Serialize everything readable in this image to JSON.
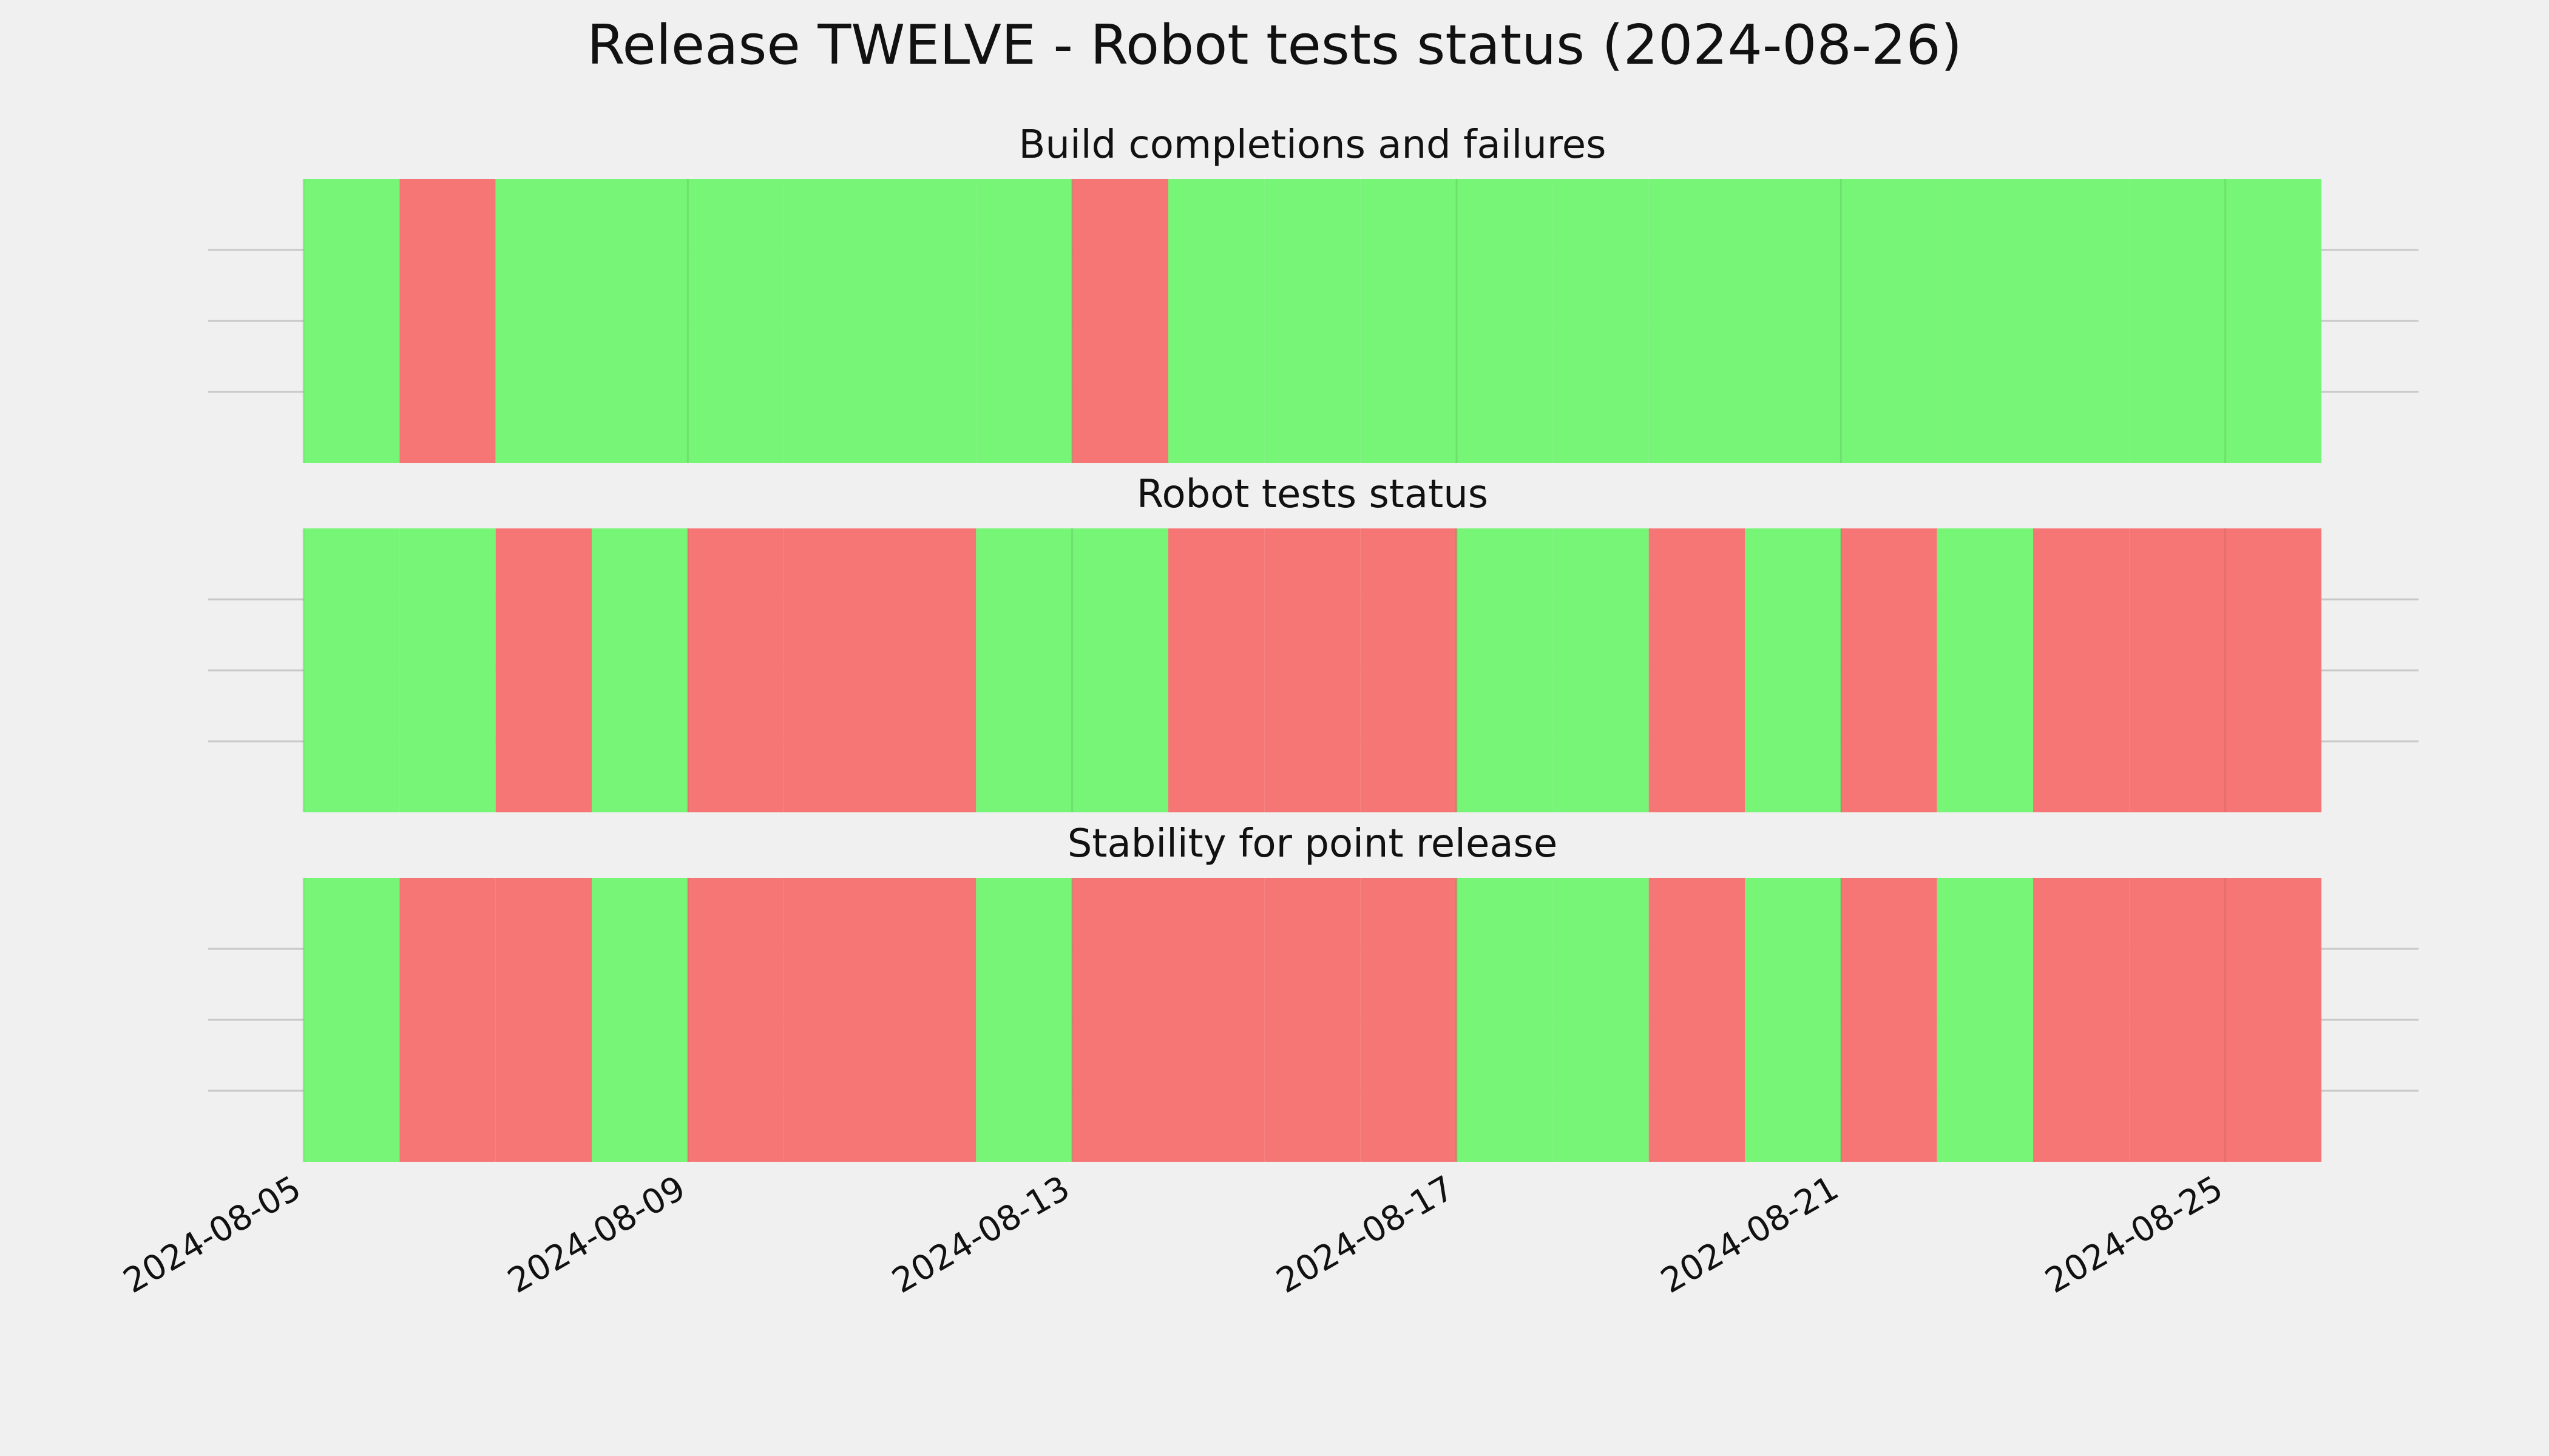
{
  "chart_data": {
    "type": "timeline",
    "title": "Release TWELVE - Robot tests status (2024-08-26)",
    "x_range": [
      "2024-08-05",
      "2024-08-26"
    ],
    "x_ticks": [
      "2024-08-05",
      "2024-08-09",
      "2024-08-13",
      "2024-08-17",
      "2024-08-21",
      "2024-08-25"
    ],
    "grid": true,
    "colors": {
      "pass": "#76f576",
      "fail": "#f67676",
      "background": "#f0f0f0",
      "grid": "#c8c8c8"
    },
    "panels": [
      {
        "title": "Build completions and failures",
        "days": [
          {
            "date": "2024-08-05",
            "status": "pass"
          },
          {
            "date": "2024-08-06",
            "status": "fail"
          },
          {
            "date": "2024-08-07",
            "status": "pass"
          },
          {
            "date": "2024-08-08",
            "status": "pass"
          },
          {
            "date": "2024-08-09",
            "status": "pass"
          },
          {
            "date": "2024-08-10",
            "status": "pass"
          },
          {
            "date": "2024-08-11",
            "status": "pass"
          },
          {
            "date": "2024-08-12",
            "status": "pass"
          },
          {
            "date": "2024-08-13",
            "status": "fail"
          },
          {
            "date": "2024-08-14",
            "status": "pass"
          },
          {
            "date": "2024-08-15",
            "status": "pass"
          },
          {
            "date": "2024-08-16",
            "status": "pass"
          },
          {
            "date": "2024-08-17",
            "status": "pass"
          },
          {
            "date": "2024-08-18",
            "status": "pass"
          },
          {
            "date": "2024-08-19",
            "status": "pass"
          },
          {
            "date": "2024-08-20",
            "status": "pass"
          },
          {
            "date": "2024-08-21",
            "status": "pass"
          },
          {
            "date": "2024-08-22",
            "status": "pass"
          },
          {
            "date": "2024-08-23",
            "status": "pass"
          },
          {
            "date": "2024-08-24",
            "status": "pass"
          },
          {
            "date": "2024-08-25",
            "status": "pass"
          }
        ]
      },
      {
        "title": "Robot tests status",
        "days": [
          {
            "date": "2024-08-05",
            "status": "pass"
          },
          {
            "date": "2024-08-06",
            "status": "pass"
          },
          {
            "date": "2024-08-07",
            "status": "fail"
          },
          {
            "date": "2024-08-08",
            "status": "pass"
          },
          {
            "date": "2024-08-09",
            "status": "fail"
          },
          {
            "date": "2024-08-10",
            "status": "fail"
          },
          {
            "date": "2024-08-11",
            "status": "fail"
          },
          {
            "date": "2024-08-12",
            "status": "pass"
          },
          {
            "date": "2024-08-13",
            "status": "pass"
          },
          {
            "date": "2024-08-14",
            "status": "fail"
          },
          {
            "date": "2024-08-15",
            "status": "fail"
          },
          {
            "date": "2024-08-16",
            "status": "fail"
          },
          {
            "date": "2024-08-17",
            "status": "pass"
          },
          {
            "date": "2024-08-18",
            "status": "pass"
          },
          {
            "date": "2024-08-19",
            "status": "fail"
          },
          {
            "date": "2024-08-20",
            "status": "pass"
          },
          {
            "date": "2024-08-21",
            "status": "fail"
          },
          {
            "date": "2024-08-22",
            "status": "pass"
          },
          {
            "date": "2024-08-23",
            "status": "fail"
          },
          {
            "date": "2024-08-24",
            "status": "fail"
          },
          {
            "date": "2024-08-25",
            "status": "fail"
          }
        ]
      },
      {
        "title": "Stability for point release",
        "days": [
          {
            "date": "2024-08-05",
            "status": "pass"
          },
          {
            "date": "2024-08-06",
            "status": "fail"
          },
          {
            "date": "2024-08-07",
            "status": "fail"
          },
          {
            "date": "2024-08-08",
            "status": "pass"
          },
          {
            "date": "2024-08-09",
            "status": "fail"
          },
          {
            "date": "2024-08-10",
            "status": "fail"
          },
          {
            "date": "2024-08-11",
            "status": "fail"
          },
          {
            "date": "2024-08-12",
            "status": "pass"
          },
          {
            "date": "2024-08-13",
            "status": "fail"
          },
          {
            "date": "2024-08-14",
            "status": "fail"
          },
          {
            "date": "2024-08-15",
            "status": "fail"
          },
          {
            "date": "2024-08-16",
            "status": "fail"
          },
          {
            "date": "2024-08-17",
            "status": "pass"
          },
          {
            "date": "2024-08-18",
            "status": "pass"
          },
          {
            "date": "2024-08-19",
            "status": "fail"
          },
          {
            "date": "2024-08-20",
            "status": "pass"
          },
          {
            "date": "2024-08-21",
            "status": "fail"
          },
          {
            "date": "2024-08-22",
            "status": "pass"
          },
          {
            "date": "2024-08-23",
            "status": "fail"
          },
          {
            "date": "2024-08-24",
            "status": "fail"
          },
          {
            "date": "2024-08-25",
            "status": "fail"
          }
        ]
      }
    ]
  }
}
